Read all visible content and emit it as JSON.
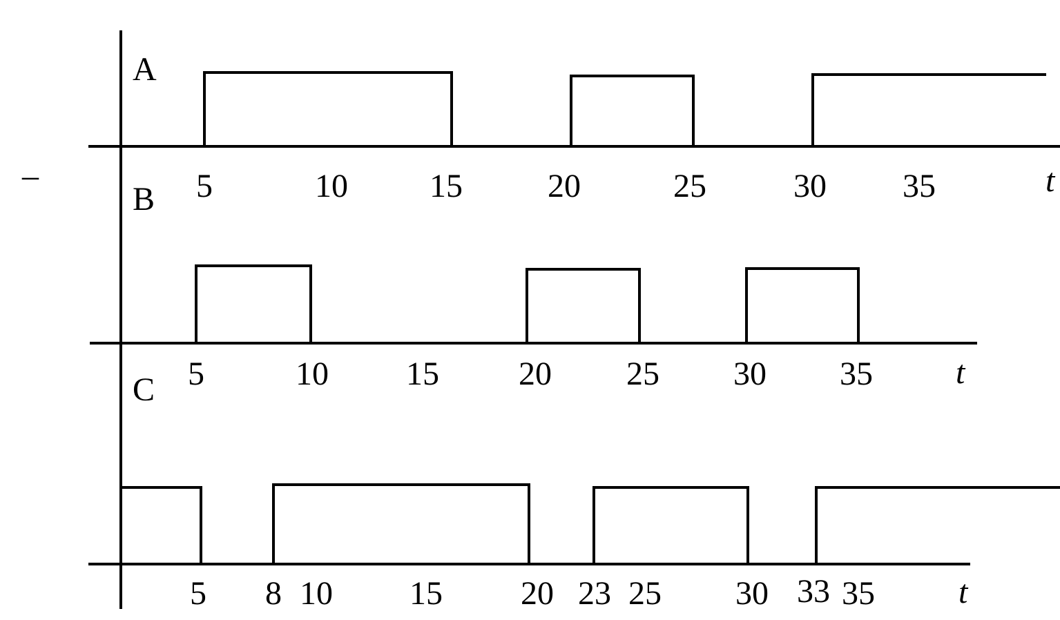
{
  "diagram": {
    "type": "timing",
    "time_symbol": "t",
    "side_mark": "–",
    "signals": [
      {
        "name": "A",
        "pulses": [
          [
            5,
            15
          ],
          [
            20,
            25
          ],
          [
            30,
            null
          ]
        ],
        "tick_labels": [
          "5",
          "10",
          "15",
          "20",
          "25",
          "30",
          "35"
        ]
      },
      {
        "name": "B",
        "pulses": [
          [
            5,
            10
          ],
          [
            20,
            25
          ],
          [
            30,
            35
          ]
        ],
        "tick_labels": [
          "5",
          "10",
          "15",
          "20",
          "25",
          "30",
          "35"
        ]
      },
      {
        "name": "C",
        "pulses": [
          [
            0,
            5
          ],
          [
            8,
            20
          ],
          [
            23,
            30
          ],
          [
            33,
            null
          ]
        ],
        "tick_labels": [
          "5",
          "8",
          "10",
          "15",
          "20",
          "23",
          "25",
          "30",
          "33",
          "35"
        ]
      }
    ]
  }
}
